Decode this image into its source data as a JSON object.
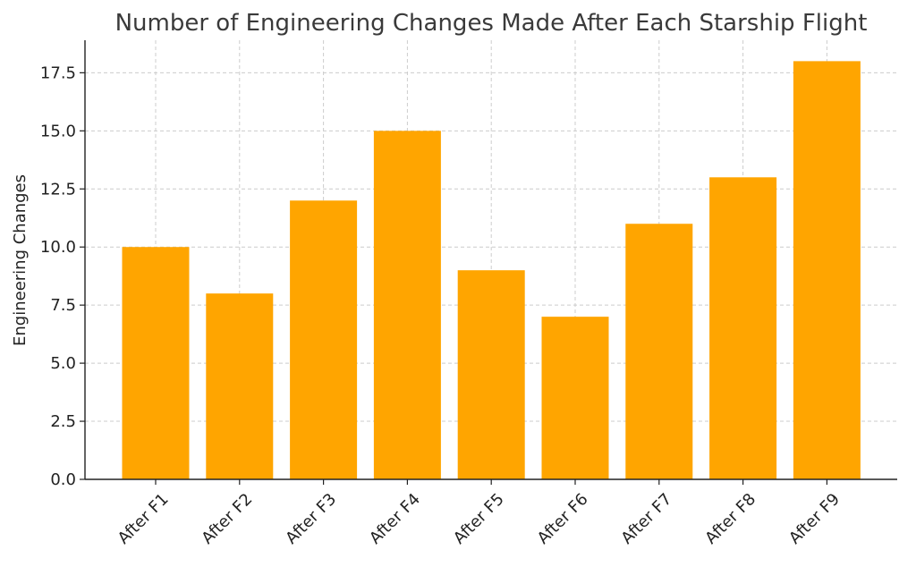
{
  "chart_data": {
    "type": "bar",
    "title": "Number of Engineering Changes Made After Each Starship Flight",
    "xlabel": "",
    "ylabel": "Engineering Changes",
    "categories": [
      "After F1",
      "After F2",
      "After F3",
      "After F4",
      "After F5",
      "After F6",
      "After F7",
      "After F8",
      "After F9"
    ],
    "values": [
      10,
      8,
      12,
      15,
      9,
      7,
      11,
      13,
      18
    ],
    "ylim": [
      0,
      18.9
    ],
    "yticks": [
      "0.0",
      "2.5",
      "5.0",
      "7.5",
      "10.0",
      "12.5",
      "15.0",
      "17.5"
    ],
    "grid": true,
    "bar_color": "#FFA500",
    "x_tick_rotation_deg": 45
  }
}
